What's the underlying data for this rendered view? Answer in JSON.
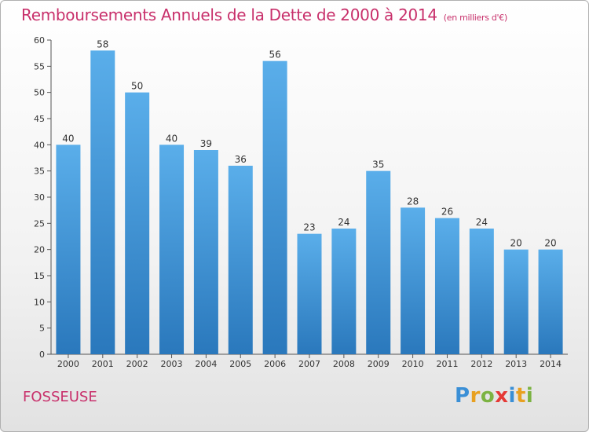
{
  "header": {
    "title": "Remboursements Annuels de la Dette de 2000 à 2014",
    "subtitle": "(en milliers d'€)"
  },
  "footer": {
    "city": "FOSSEUSE",
    "logo_text": "Proxiti"
  },
  "colors": {
    "title": "#c8306b",
    "bar_top": "#5aaeea",
    "bar_bottom": "#2a78bc",
    "axis": "#555555"
  },
  "chart_data": {
    "type": "bar",
    "title": "Remboursements Annuels de la Dette de 2000 à 2014",
    "xlabel": "",
    "ylabel": "",
    "ylim": [
      0,
      60
    ],
    "yticks": [
      0,
      5,
      10,
      15,
      20,
      25,
      30,
      35,
      40,
      45,
      50,
      55,
      60
    ],
    "grid": false,
    "categories": [
      "2000",
      "2001",
      "2002",
      "2003",
      "2004",
      "2005",
      "2006",
      "2007",
      "2008",
      "2009",
      "2010",
      "2011",
      "2012",
      "2013",
      "2014"
    ],
    "values": [
      40,
      58,
      50,
      40,
      39,
      36,
      56,
      23,
      24,
      35,
      28,
      26,
      24,
      20,
      20
    ]
  }
}
